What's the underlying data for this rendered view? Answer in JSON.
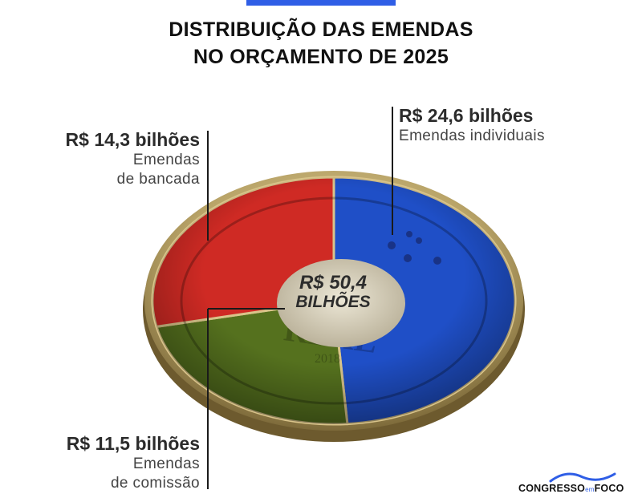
{
  "title_line1": "DISTRIBUIÇÃO DAS EMENDAS",
  "title_line2": "NO ORÇAMENTO DE 2025",
  "center": {
    "line1": "R$ 50,4",
    "line2": "BILHÕES"
  },
  "coin_engraving": {
    "word": "REAL",
    "year": "2018"
  },
  "labels": {
    "individuais_amount": "R$ 24,6 bilhões",
    "individuais_desc": "Emendas individuais",
    "bancada_amount": "R$ 14,3 bilhões",
    "bancada_desc1": "Emendas",
    "bancada_desc2": "de bancada",
    "comissao_amount": "R$ 11,5 bilhões",
    "comissao_desc1": "Emendas",
    "comissao_desc2": "de comissão"
  },
  "logo": {
    "part1": "CONGRESSO",
    "part2": "em",
    "part3": "FOCO"
  },
  "chart_data": {
    "type": "pie",
    "total": 50.4,
    "unit": "R$ bilhões",
    "slices": [
      {
        "name": "Emendas individuais",
        "value": 24.6,
        "color": "#1f4fc7"
      },
      {
        "name": "Emendas de comissão",
        "value": 11.5,
        "color": "#55711e"
      },
      {
        "name": "Emendas de bancada",
        "value": 14.3,
        "color": "#cf2a24"
      }
    ]
  }
}
